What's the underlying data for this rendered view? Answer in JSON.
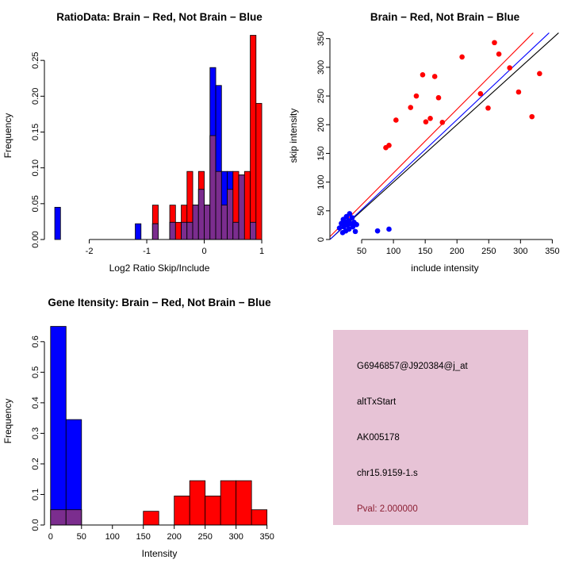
{
  "info_box": {
    "background": "#e7c3d6",
    "pval_color": "#8b1f33",
    "lines": [
      "G6946857@J920384@j_at",
      "altTxStart",
      "AK005178",
      "chr15.9159-1.s"
    ],
    "pval_line": "Pval: 2.000000"
  },
  "chart_data": [
    {
      "type": "bar",
      "title": "RatioData: Brain − Red, Not Brain − Blue",
      "xlabel": "Log2 Ratio Skip/Include",
      "ylabel": "Frequency",
      "xlim": [
        -2.78,
        1.22
      ],
      "ylim": [
        0,
        0.29
      ],
      "xticks": [
        -2,
        -1,
        0,
        1
      ],
      "xtick_labels": [
        "-2",
        "-1",
        "0",
        "1"
      ],
      "yticks": [
        0,
        0.05,
        0.1,
        0.15,
        0.2,
        0.25
      ],
      "ytick_labels": [
        "0.00",
        "0.05",
        "0.10",
        "0.15",
        "0.20",
        "0.25"
      ],
      "bin_width": 0.1,
      "colors": {
        "red": "#FF0000",
        "blue": "#0000FF",
        "overlap": "#7b2d8e"
      },
      "bars": [
        {
          "x": -2.6,
          "red": 0,
          "blue": 0.045
        },
        {
          "x": -1.2,
          "red": 0,
          "blue": 0.022
        },
        {
          "x": -0.9,
          "red": 0.048,
          "blue": 0.022
        },
        {
          "x": -0.6,
          "red": 0.048,
          "blue": 0.024
        },
        {
          "x": -0.5,
          "red": 0.024,
          "blue": 0
        },
        {
          "x": -0.4,
          "red": 0.048,
          "blue": 0.024
        },
        {
          "x": -0.3,
          "red": 0.095,
          "blue": 0.024
        },
        {
          "x": -0.2,
          "red": 0.048,
          "blue": 0.048
        },
        {
          "x": -0.1,
          "red": 0.095,
          "blue": 0.07
        },
        {
          "x": 0,
          "red": 0.048,
          "blue": 0.048
        },
        {
          "x": 0.1,
          "red": 0.145,
          "blue": 0.24
        },
        {
          "x": 0.2,
          "red": 0.095,
          "blue": 0.215
        },
        {
          "x": 0.3,
          "red": 0.048,
          "blue": 0.095
        },
        {
          "x": 0.4,
          "red": 0.07,
          "blue": 0.095
        },
        {
          "x": 0.5,
          "red": 0.095,
          "blue": 0.024
        },
        {
          "x": 0.6,
          "red": 0.09,
          "blue": 0.09
        },
        {
          "x": 0.7,
          "red": 0.095,
          "blue": 0
        },
        {
          "x": 0.8,
          "red": 0.285,
          "blue": 0.024
        },
        {
          "x": 0.9,
          "red": 0.19,
          "blue": 0
        }
      ]
    },
    {
      "type": "scatter",
      "title": "Brain − Red, Not Brain − Blue",
      "xlabel": "include intensity",
      "ylabel": "skip intensity",
      "xlim": [
        0,
        362
      ],
      "ylim": [
        0,
        362
      ],
      "xticks": [
        50,
        100,
        150,
        200,
        250,
        300,
        350
      ],
      "xtick_labels": [
        "50",
        "100",
        "150",
        "200",
        "250",
        "300",
        "350"
      ],
      "yticks": [
        0,
        50,
        100,
        150,
        200,
        250,
        300,
        350
      ],
      "ytick_labels": [
        "0",
        "50",
        "100",
        "150",
        "200",
        "250",
        "300",
        "350"
      ],
      "series": [
        {
          "name": "brain-red",
          "color": "#FF0000",
          "points": [
            [
              88,
              160
            ],
            [
              93,
              164
            ],
            [
              104,
              208
            ],
            [
              127,
              230
            ],
            [
              136,
              250
            ],
            [
              146,
              287
            ],
            [
              151,
              205
            ],
            [
              158,
              211
            ],
            [
              165,
              284
            ],
            [
              171,
              247
            ],
            [
              177,
              204
            ],
            [
              208,
              318
            ],
            [
              237,
              254
            ],
            [
              249,
              229
            ],
            [
              259,
              343
            ],
            [
              266,
              323
            ],
            [
              283,
              299
            ],
            [
              297,
              257
            ],
            [
              318,
              214
            ],
            [
              330,
              289
            ]
          ]
        },
        {
          "name": "not-brain-blue",
          "color": "#0000FF",
          "points": [
            [
              15,
              20
            ],
            [
              18,
              28
            ],
            [
              20,
              12
            ],
            [
              21,
              35
            ],
            [
              22,
              22
            ],
            [
              24,
              30
            ],
            [
              25,
              15
            ],
            [
              26,
              40
            ],
            [
              28,
              25
            ],
            [
              29,
              33
            ],
            [
              30,
              18
            ],
            [
              31,
              45
            ],
            [
              33,
              28
            ],
            [
              35,
              38
            ],
            [
              36,
              22
            ],
            [
              38,
              30
            ],
            [
              40,
              14
            ],
            [
              42,
              26
            ],
            [
              75,
              15
            ],
            [
              93,
              18
            ]
          ]
        }
      ],
      "lines": [
        {
          "color": "#000000",
          "from": [
            0,
            0
          ],
          "to": [
            360,
            360
          ]
        },
        {
          "color": "#FF0000",
          "from": [
            0,
            5
          ],
          "to": [
            320,
            360
          ]
        },
        {
          "color": "#0000FF",
          "from": [
            0,
            0
          ],
          "to": [
            345,
            360
          ]
        }
      ]
    },
    {
      "type": "bar",
      "title": "Gene Itensity: Brain − Red, Not Brain − Blue",
      "xlabel": "Intensity",
      "ylabel": "Frequency",
      "xlim": [
        -10,
        362
      ],
      "ylim": [
        0,
        0.68
      ],
      "xticks": [
        0,
        50,
        100,
        150,
        200,
        250,
        300,
        350
      ],
      "xtick_labels": [
        "0",
        "50",
        "100",
        "150",
        "200",
        "250",
        "300",
        "350"
      ],
      "yticks": [
        0,
        0.1,
        0.2,
        0.3,
        0.4,
        0.5,
        0.6
      ],
      "ytick_labels": [
        "0.0",
        "0.1",
        "0.2",
        "0.3",
        "0.4",
        "0.5",
        "0.6"
      ],
      "bin_width": 25,
      "colors": {
        "red": "#FF0000",
        "blue": "#0000FF",
        "overlap": "#7b2d8e"
      },
      "bars": [
        {
          "x": 0,
          "red": 0.05,
          "blue": 0.65
        },
        {
          "x": 25,
          "red": 0.05,
          "blue": 0.345
        },
        {
          "x": 150,
          "red": 0.045,
          "blue": 0
        },
        {
          "x": 200,
          "red": 0.095,
          "blue": 0
        },
        {
          "x": 225,
          "red": 0.145,
          "blue": 0
        },
        {
          "x": 250,
          "red": 0.095,
          "blue": 0
        },
        {
          "x": 275,
          "red": 0.145,
          "blue": 0
        },
        {
          "x": 300,
          "red": 0.145,
          "blue": 0
        },
        {
          "x": 325,
          "red": 0.05,
          "blue": 0
        }
      ]
    }
  ]
}
